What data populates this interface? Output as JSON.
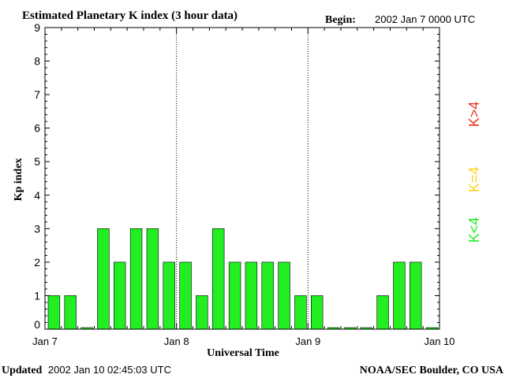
{
  "header": {
    "title": "Estimated Planetary K index (3 hour data)",
    "begin_label": "Begin:",
    "begin_value": "2002 Jan 7 0000 UTC"
  },
  "footer": {
    "updated_label": "Updated",
    "updated_value": "2002 Jan 10 02:45:03 UTC",
    "source": "NOAA/SEC Boulder, CO USA"
  },
  "legend": {
    "items": [
      {
        "label": "K>4",
        "color": "#e8371e"
      },
      {
        "label": "K=4",
        "color": "#ffd21e"
      },
      {
        "label": "K<4",
        "color": "#22ee22"
      }
    ]
  },
  "chart_data": {
    "type": "bar",
    "title": "Estimated Planetary K index (3 hour data)",
    "xlabel": "Universal Time",
    "ylabel": "Kp index",
    "ylim": [
      0,
      9
    ],
    "yticks": [
      "0",
      "1",
      "2",
      "3",
      "4",
      "5",
      "6",
      "7",
      "8",
      "9"
    ],
    "xticks": [
      "Jan 7",
      "Jan 8",
      "Jan 9",
      "Jan 10"
    ],
    "interval_hours": 3,
    "values": [
      1,
      1,
      0,
      3,
      2,
      3,
      3,
      2,
      2,
      1,
      3,
      2,
      2,
      2,
      2,
      1,
      1,
      0,
      0,
      0,
      1,
      2,
      2,
      0
    ],
    "bar_color": "#22ee22",
    "grid": "dotted vertical lines at day boundaries"
  }
}
